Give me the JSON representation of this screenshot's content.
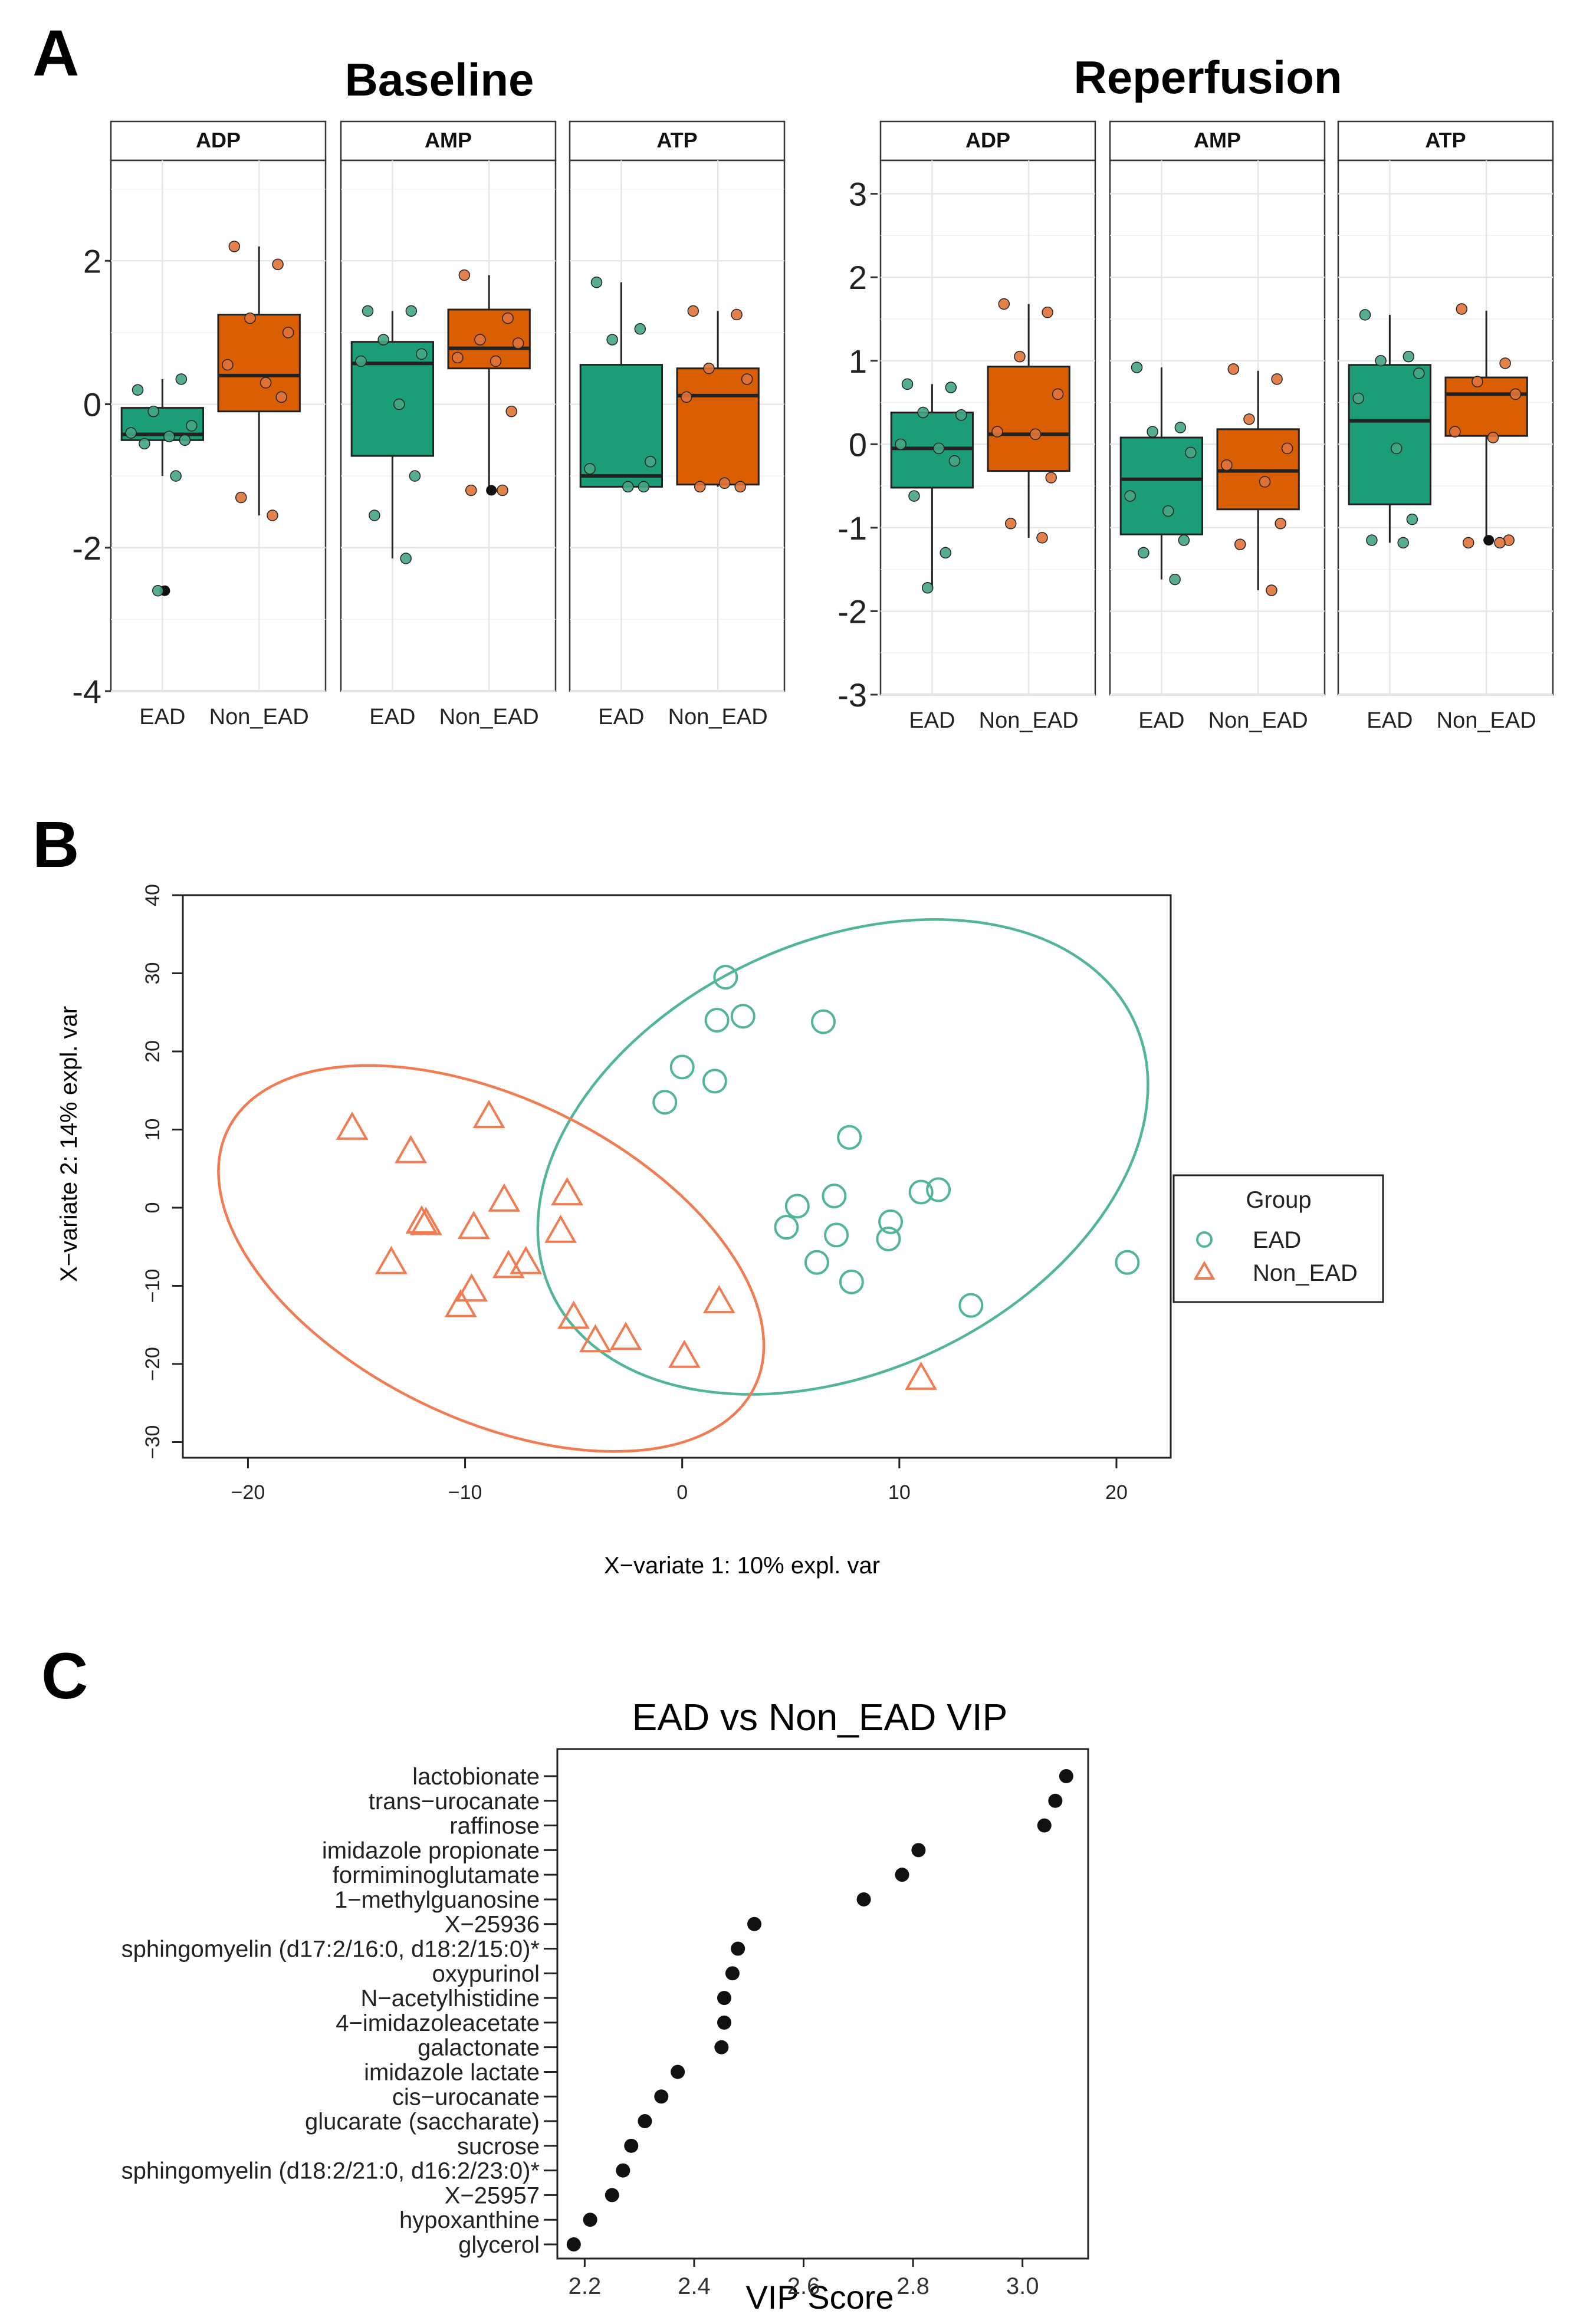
{
  "panels": {
    "A": {
      "letter": "A",
      "groups_label": [
        "EAD",
        "Non_EAD"
      ],
      "colors": {
        "EAD": "#1b9e77",
        "Non_EAD": "#d95f02",
        "EAD_point": "#45a582",
        "Non_EAD_point": "#e0733a"
      },
      "baseline": {
        "title": "Baseline",
        "ylim": [
          -4,
          3.4
        ],
        "y_ticks": [
          -4,
          -2,
          0,
          2
        ],
        "y_tick_labels": [
          "-4",
          "-2",
          "0",
          "2"
        ],
        "facets": [
          {
            "label": "ADP",
            "boxes": {
              "EAD": {
                "q1": -0.5,
                "median": -0.42,
                "q3": -0.05,
                "wmin": -1.0,
                "wmax": 0.35,
                "points": [
                  0.2,
                  0.35,
                  -0.1,
                  -0.3,
                  -0.4,
                  -0.45,
                  -0.5,
                  -0.55,
                  -1.0,
                  -2.6
                ],
                "outliers": [
                  -2.6
                ]
              },
              "Non_EAD": {
                "q1": -0.1,
                "median": 0.4,
                "q3": 1.25,
                "wmin": -1.55,
                "wmax": 2.2,
                "points": [
                  2.2,
                  1.95,
                  1.2,
                  1.0,
                  0.55,
                  0.3,
                  0.1,
                  -1.3,
                  -1.55
                ]
              }
            }
          },
          {
            "label": "AMP",
            "boxes": {
              "EAD": {
                "q1": -0.72,
                "median": 0.57,
                "q3": 0.87,
                "wmin": -2.15,
                "wmax": 1.3,
                "points": [
                  1.3,
                  1.3,
                  0.9,
                  0.7,
                  0.6,
                  0.0,
                  -1.0,
                  -1.55,
                  -2.15
                ]
              },
              "Non_EAD": {
                "q1": 0.5,
                "median": 0.78,
                "q3": 1.32,
                "wmin": -1.2,
                "wmax": 1.8,
                "points": [
                  1.8,
                  1.2,
                  0.9,
                  0.85,
                  0.65,
                  0.6,
                  -0.1,
                  -1.2,
                  -1.2
                ],
                "outliers": [
                  -1.2
                ]
              }
            }
          },
          {
            "label": "ATP",
            "boxes": {
              "EAD": {
                "q1": -1.15,
                "median": -1.0,
                "q3": 0.55,
                "wmin": -1.15,
                "wmax": 1.7,
                "points": [
                  1.7,
                  1.05,
                  0.9,
                  -0.8,
                  -0.9,
                  -1.15,
                  -1.15
                ]
              },
              "Non_EAD": {
                "q1": -1.12,
                "median": 0.12,
                "q3": 0.5,
                "wmin": -1.15,
                "wmax": 1.3,
                "points": [
                  1.3,
                  1.25,
                  0.5,
                  0.35,
                  0.1,
                  -1.1,
                  -1.15,
                  -1.15
                ]
              }
            }
          }
        ]
      },
      "reperfusion": {
        "title": "Reperfusion",
        "ylim": [
          -3,
          3.4
        ],
        "y_ticks": [
          -3,
          -2,
          -1,
          0,
          1,
          2,
          3
        ],
        "y_tick_labels": [
          "-3",
          "-2",
          "-1",
          "0",
          "1",
          "2",
          "3"
        ],
        "facets": [
          {
            "label": "ADP",
            "boxes": {
              "EAD": {
                "q1": -0.52,
                "median": -0.05,
                "q3": 0.38,
                "wmin": -1.72,
                "wmax": 0.72,
                "points": [
                  0.72,
                  0.68,
                  0.38,
                  0.35,
                  0.0,
                  -0.05,
                  -0.2,
                  -0.62,
                  -1.3,
                  -1.72
                ]
              },
              "Non_EAD": {
                "q1": -0.32,
                "median": 0.12,
                "q3": 0.93,
                "wmin": -1.12,
                "wmax": 1.68,
                "points": [
                  1.68,
                  1.58,
                  1.05,
                  0.6,
                  0.15,
                  0.12,
                  -0.4,
                  -0.95,
                  -1.12
                ]
              }
            }
          },
          {
            "label": "AMP",
            "boxes": {
              "EAD": {
                "q1": -1.08,
                "median": -0.42,
                "q3": 0.08,
                "wmin": -1.62,
                "wmax": 0.92,
                "points": [
                  0.92,
                  0.2,
                  0.15,
                  -0.1,
                  -0.62,
                  -0.8,
                  -1.15,
                  -1.3,
                  -1.62
                ]
              },
              "Non_EAD": {
                "q1": -0.78,
                "median": -0.32,
                "q3": 0.18,
                "wmin": -1.75,
                "wmax": 0.88,
                "points": [
                  0.9,
                  0.78,
                  0.3,
                  -0.05,
                  -0.25,
                  -0.45,
                  -0.95,
                  -1.2,
                  -1.75
                ]
              }
            }
          },
          {
            "label": "ATP",
            "boxes": {
              "EAD": {
                "q1": -0.72,
                "median": 0.28,
                "q3": 0.95,
                "wmin": -1.18,
                "wmax": 1.55,
                "points": [
                  1.55,
                  1.05,
                  1.0,
                  0.85,
                  0.55,
                  -0.05,
                  -0.9,
                  -1.15,
                  -1.18
                ]
              },
              "Non_EAD": {
                "q1": 0.1,
                "median": 0.6,
                "q3": 0.8,
                "wmin": -1.18,
                "wmax": 1.6,
                "points": [
                  1.62,
                  0.97,
                  0.75,
                  0.6,
                  0.15,
                  0.08,
                  -1.15,
                  -1.18,
                  -1.18
                ],
                "outliers": [
                  -1.15
                ]
              }
            }
          }
        ]
      }
    },
    "B": {
      "letter": "B",
      "xlabel": "X−variate 1: 10% expl. var",
      "ylabel": "X−variate 2: 14% expl. var",
      "xlim": [
        -23,
        22.5
      ],
      "ylim": [
        -32,
        40
      ],
      "x_ticks": [
        -20,
        -10,
        0,
        10,
        20
      ],
      "x_tick_labels": [
        "−20",
        "−10",
        "0",
        "10",
        "20"
      ],
      "y_ticks": [
        -30,
        -20,
        -10,
        0,
        10,
        20,
        30,
        40
      ],
      "y_tick_labels": [
        "−30",
        "−20",
        "−10",
        "0",
        "10",
        "20",
        "30",
        "40"
      ],
      "legend": {
        "title": "Group",
        "items": [
          "EAD",
          "Non_EAD"
        ]
      },
      "colors": {
        "EAD": "#52b59a",
        "Non_EAD": "#f07c53"
      }
    },
    "C": {
      "letter": "C",
      "title": "EAD vs Non_EAD VIP",
      "xlabel": "VIP Score",
      "xlim": [
        2.15,
        3.12
      ],
      "x_ticks": [
        2.2,
        2.4,
        2.6,
        2.8,
        3.0
      ],
      "x_tick_labels": [
        "2.2",
        "2.4",
        "2.6",
        "2.8",
        "3.0"
      ]
    }
  },
  "chart_data": [
    {
      "type": "box",
      "title": "Baseline",
      "facets": [
        "ADP",
        "AMP",
        "ATP"
      ],
      "categories": [
        "EAD",
        "Non_EAD"
      ],
      "ylim": [
        -4,
        3.4
      ]
    },
    {
      "type": "box",
      "title": "Reperfusion",
      "facets": [
        "ADP",
        "AMP",
        "ATP"
      ],
      "categories": [
        "EAD",
        "Non_EAD"
      ],
      "ylim": [
        -3,
        3.4
      ]
    },
    {
      "type": "scatter",
      "xlabel": "X−variate 1: 10% expl. var",
      "ylabel": "X−variate 2: 14% expl. var",
      "xlim": [
        -23,
        22.5
      ],
      "ylim": [
        -32,
        40
      ],
      "series": [
        {
          "name": "EAD",
          "marker": "circle",
          "points": [
            [
              2,
              29.5
            ],
            [
              2.8,
              24.5
            ],
            [
              1.6,
              24
            ],
            [
              6.5,
              23.8
            ],
            [
              0,
              18
            ],
            [
              1.5,
              16.2
            ],
            [
              -0.8,
              13.5
            ],
            [
              7.7,
              9
            ],
            [
              11.8,
              2.3
            ],
            [
              11,
              2
            ],
            [
              7,
              1.5
            ],
            [
              5.3,
              0.2
            ],
            [
              9.6,
              -1.8
            ],
            [
              4.8,
              -2.5
            ],
            [
              7.1,
              -3.5
            ],
            [
              9.5,
              -4
            ],
            [
              6.2,
              -7
            ],
            [
              20.5,
              -7
            ],
            [
              7.8,
              -9.5
            ],
            [
              13.3,
              -12.5
            ]
          ],
          "ellipse": {
            "cx": 7.4,
            "cy": 6.5,
            "rx": 14.8,
            "ry": 27.5,
            "rotate": -25
          }
        },
        {
          "name": "Non_EAD",
          "marker": "triangle",
          "points": [
            [
              -15.2,
              10.2
            ],
            [
              -8.9,
              11.7
            ],
            [
              -12.5,
              7.2
            ],
            [
              -8.2,
              1
            ],
            [
              -5.3,
              1.8
            ],
            [
              -12,
              -1.8
            ],
            [
              -11.8,
              -2
            ],
            [
              -9.6,
              -2.5
            ],
            [
              -5.6,
              -3
            ],
            [
              -13.4,
              -7
            ],
            [
              -8,
              -7.5
            ],
            [
              -7.2,
              -7
            ],
            [
              -9.7,
              -10.5
            ],
            [
              -10.2,
              -12.5
            ],
            [
              1.7,
              -12
            ],
            [
              -5,
              -14
            ],
            [
              -4,
              -17
            ],
            [
              -2.6,
              -16.7
            ],
            [
              0.1,
              -19
            ],
            [
              11,
              -21.8
            ]
          ],
          "ellipse": {
            "cx": -8.8,
            "cy": -6.5,
            "rx": 13.5,
            "ry": 20.5,
            "rotate": 26
          }
        }
      ]
    },
    {
      "type": "dot",
      "title": "EAD vs Non_EAD VIP",
      "xlabel": "VIP Score",
      "xlim": [
        2.15,
        3.12
      ],
      "categories": [
        "lactobionate",
        "trans−urocanate",
        "raffinose",
        "imidazole propionate",
        "formiminoglutamate",
        "1−methylguanosine",
        "X−25936",
        "sphingomyelin (d17:2/16:0, d18:2/15:0)*",
        "oxypurinol",
        "N−acetylhistidine",
        "4−imidazoleacetate",
        "galactonate",
        "imidazole lactate",
        "cis−urocanate",
        "glucarate (saccharate)",
        "sucrose",
        "sphingomyelin (d18:2/21:0, d16:2/23:0)*",
        "X−25957",
        "hypoxanthine",
        "glycerol"
      ],
      "values": [
        3.08,
        3.06,
        3.04,
        2.81,
        2.78,
        2.71,
        2.51,
        2.48,
        2.47,
        2.455,
        2.455,
        2.45,
        2.37,
        2.34,
        2.31,
        2.285,
        2.27,
        2.25,
        2.21,
        2.18
      ]
    }
  ]
}
